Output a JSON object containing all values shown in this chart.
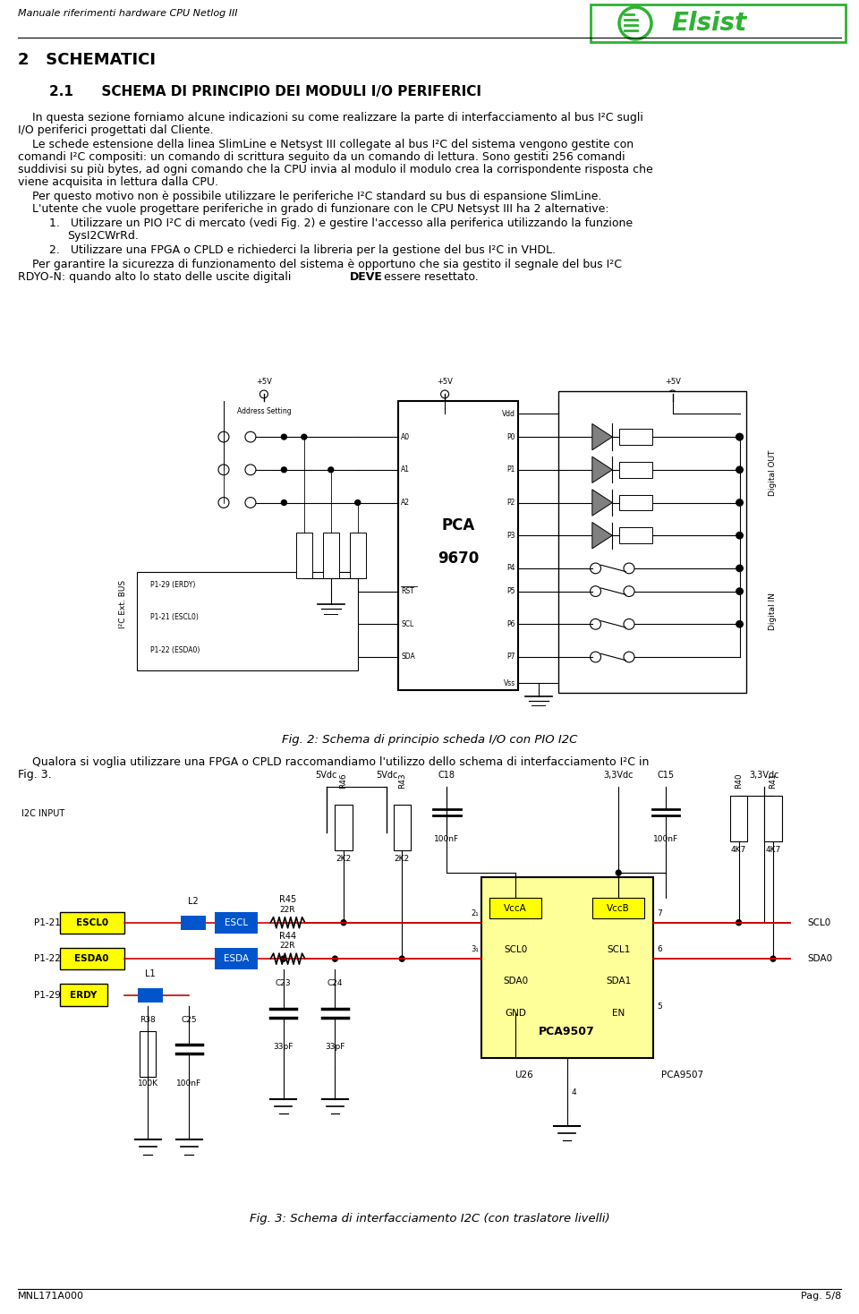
{
  "page_bg": "#ffffff",
  "header_text": "Manuale riferimenti hardware CPU Netlog III",
  "footer_left": "MNL171A000",
  "footer_right": "Pag. 5/8",
  "section_title": "2   SCHEMATICI",
  "subsection_title": "2.1      SCHEMA DI PRINCIPIO DEI MODULI I/O PERIFERICI",
  "fig2_caption": "Fig. 2: Schema di principio scheda I/O con PIO I2C",
  "fig3_caption": "Fig. 3: Schema di interfacciamento I2C (con traslatore livelli)",
  "text_color": "#000000",
  "green_color": "#2db232",
  "blue_color": "#0000cc",
  "red_color": "#cc0000",
  "yellow_color": "#ffff00"
}
